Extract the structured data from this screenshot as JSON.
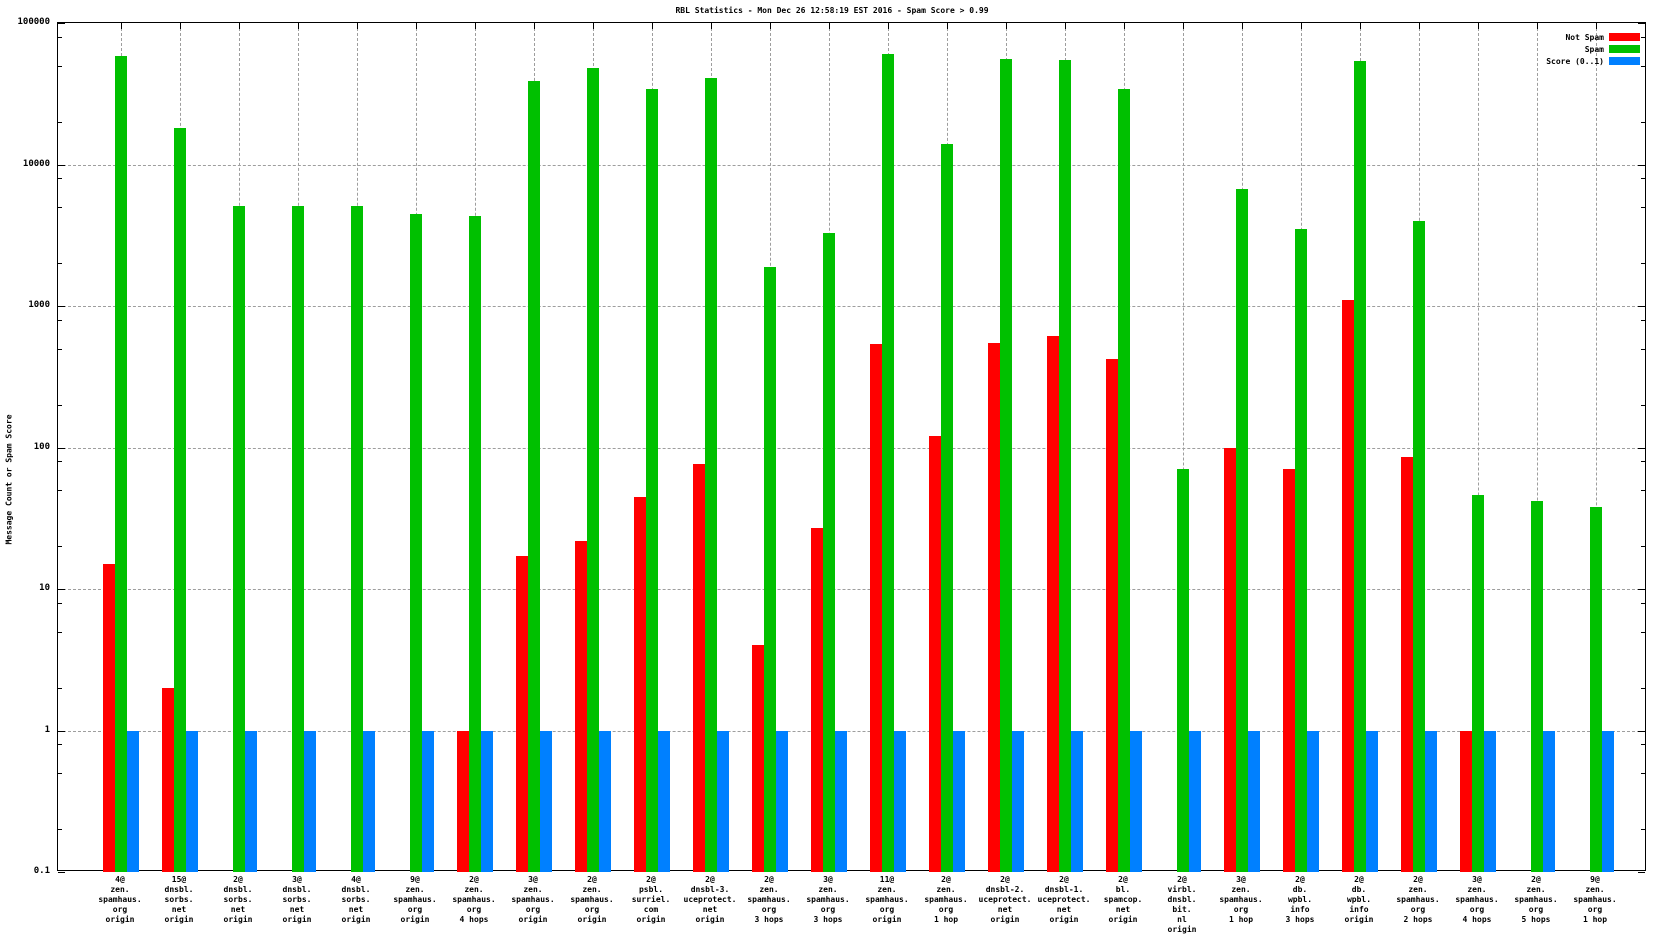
{
  "title": "RBL Statistics - Mon Dec 26 12:58:19 EST 2016 - Spam Score > 0.99",
  "y_axis": {
    "label": "Message Count or Spam Score",
    "ticks": [
      "100000",
      "10000",
      "1000",
      "100",
      "10",
      "1",
      "0.1"
    ],
    "scale": "log",
    "min": 0.1,
    "max": 100000
  },
  "legend": [
    {
      "label": "Not Spam",
      "color": "#ff0000"
    },
    {
      "label": "Spam",
      "color": "#00c000"
    },
    {
      "label": "Score (0..1)",
      "color": "#0080ff"
    }
  ],
  "chart_data": {
    "type": "bar",
    "title": "RBL Statistics - Mon Dec 26 12:58:19 EST 2016 - Spam Score > 0.99",
    "ylabel": "Message Count or Spam Score",
    "y_scale": "log",
    "ylim": [
      0.1,
      100000
    ],
    "grid": true,
    "legend_position": "top-right",
    "categories": [
      [
        "4@",
        "zen.",
        "spamhaus.",
        "org",
        "origin"
      ],
      [
        "15@",
        "dnsbl.",
        "sorbs.",
        "net",
        "origin"
      ],
      [
        "2@",
        "dnsbl.",
        "sorbs.",
        "net",
        "origin"
      ],
      [
        "3@",
        "dnsbl.",
        "sorbs.",
        "net",
        "origin"
      ],
      [
        "4@",
        "dnsbl.",
        "sorbs.",
        "net",
        "origin"
      ],
      [
        "9@",
        "zen.",
        "spamhaus.",
        "org",
        "origin"
      ],
      [
        "2@",
        "zen.",
        "spamhaus.",
        "org",
        "4 hops"
      ],
      [
        "3@",
        "zen.",
        "spamhaus.",
        "org",
        "origin"
      ],
      [
        "2@",
        "zen.",
        "spamhaus.",
        "org",
        "origin"
      ],
      [
        "2@",
        "psbl.",
        "surriel.",
        "com",
        "origin"
      ],
      [
        "2@",
        "dnsbl-3.",
        "uceprotect.",
        "net",
        "origin"
      ],
      [
        "2@",
        "zen.",
        "spamhaus.",
        "org",
        "3 hops"
      ],
      [
        "3@",
        "zen.",
        "spamhaus.",
        "org",
        "3 hops"
      ],
      [
        "11@",
        "zen.",
        "spamhaus.",
        "org",
        "origin"
      ],
      [
        "2@",
        "zen.",
        "spamhaus.",
        "org",
        "1 hop"
      ],
      [
        "2@",
        "dnsbl-2.",
        "uceprotect.",
        "net",
        "origin"
      ],
      [
        "2@",
        "dnsbl-1.",
        "uceprotect.",
        "net",
        "origin"
      ],
      [
        "2@",
        "bl.",
        "spamcop.",
        "net",
        "origin"
      ],
      [
        "2@",
        "virbl.",
        "dnsbl.",
        "bit.",
        "nl",
        "origin"
      ],
      [
        "3@",
        "zen.",
        "spamhaus.",
        "org",
        "1 hop"
      ],
      [
        "2@",
        "db.",
        "wpbl.",
        "info",
        "3 hops"
      ],
      [
        "2@",
        "db.",
        "wpbl.",
        "info",
        "origin"
      ],
      [
        "2@",
        "zen.",
        "spamhaus.",
        "org",
        "2 hops"
      ],
      [
        "3@",
        "zen.",
        "spamhaus.",
        "org",
        "4 hops"
      ],
      [
        "2@",
        "zen.",
        "spamhaus.",
        "org",
        "5 hops"
      ],
      [
        "9@",
        "zen.",
        "spamhaus.",
        "org",
        "1 hop"
      ]
    ],
    "series": [
      {
        "name": "Not Spam",
        "color": "#ff0000",
        "values": [
          15,
          2,
          null,
          null,
          null,
          null,
          1,
          17,
          22,
          45,
          77,
          4,
          27,
          540,
          120,
          550,
          610,
          420,
          null,
          100,
          70,
          1100,
          85,
          1,
          null,
          null
        ]
      },
      {
        "name": "Spam",
        "color": "#00c000",
        "values": [
          58000,
          18000,
          5100,
          5100,
          5100,
          4500,
          4300,
          39000,
          48000,
          34000,
          41000,
          1900,
          3300,
          60000,
          14000,
          56000,
          55000,
          34000,
          70,
          6700,
          3500,
          54000,
          4000,
          46,
          42,
          38
        ]
      },
      {
        "name": "Score (0..1)",
        "color": "#0080ff",
        "values": [
          1,
          1,
          1,
          1,
          1,
          1,
          1,
          1,
          1,
          1,
          1,
          1,
          1,
          1,
          1,
          1,
          1,
          1,
          1,
          1,
          1,
          1,
          1,
          1,
          1,
          1
        ]
      }
    ]
  }
}
